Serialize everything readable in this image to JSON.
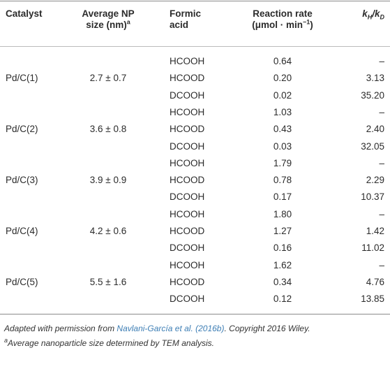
{
  "table": {
    "header": {
      "catalyst": "Catalyst",
      "size": {
        "line1": "Average NP",
        "line2": "size (nm)",
        "sup": "a"
      },
      "acid": {
        "line1": "Formic",
        "line2": "acid"
      },
      "rate": {
        "line1": "Reaction rate",
        "line2": "(μmol · min",
        "sup": "−1",
        "close": ")"
      },
      "ratio": {
        "k1": "k",
        "sub1": "H",
        "sep": "/k",
        "sub2": "D"
      }
    },
    "groups": [
      {
        "catalyst": "Pd/C(1)",
        "size": "2.7 ± 0.7",
        "rows": [
          [
            "HCOOH",
            "0.64",
            "–"
          ],
          [
            "HCOOD",
            "0.20",
            "3.13"
          ],
          [
            "DCOOH",
            "0.02",
            "35.20"
          ]
        ]
      },
      {
        "catalyst": "Pd/C(2)",
        "size": "3.6 ± 0.8",
        "rows": [
          [
            "HCOOH",
            "1.03",
            "–"
          ],
          [
            "HCOOD",
            "0.43",
            "2.40"
          ],
          [
            "DCOOH",
            "0.03",
            "32.05"
          ]
        ]
      },
      {
        "catalyst": "Pd/C(3)",
        "size": "3.9 ± 0.9",
        "rows": [
          [
            "HCOOH",
            "1.79",
            "–"
          ],
          [
            "HCOOD",
            "0.78",
            "2.29"
          ],
          [
            "DCOOH",
            "0.17",
            "10.37"
          ]
        ]
      },
      {
        "catalyst": "Pd/C(4)",
        "size": "4.2 ± 0.6",
        "rows": [
          [
            "HCOOH",
            "1.80",
            "–"
          ],
          [
            "HCOOD",
            "1.27",
            "1.42"
          ],
          [
            "DCOOH",
            "0.16",
            "11.02"
          ]
        ]
      },
      {
        "catalyst": "Pd/C(5)",
        "size": "5.5 ± 1.6",
        "rows": [
          [
            "HCOOH",
            "1.62",
            "–"
          ],
          [
            "HCOOD",
            "0.34",
            "4.76"
          ],
          [
            "DCOOH",
            "0.12",
            "13.85"
          ]
        ]
      }
    ]
  },
  "footnotes": {
    "source": {
      "before": "Adapted with permission from ",
      "link": "Navlani-García et al. (2016b)",
      "after": ". Copyright 2016 Wiley."
    },
    "size": {
      "marker": "a",
      "text": "Average nanoparticle size determined by TEM analysis."
    }
  }
}
